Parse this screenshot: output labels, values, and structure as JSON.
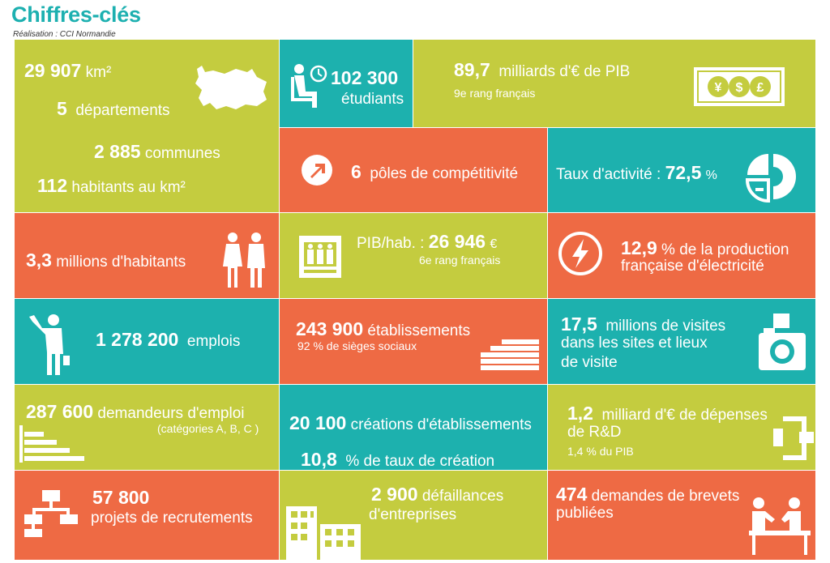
{
  "header": {
    "title": "Chiffres-clés",
    "subtitle": "Réalisation : CCI Normandie"
  },
  "tiles": {
    "territory": {
      "area_num": "29 907",
      "area_unit": "km²",
      "dept_num": "5",
      "dept_label": "départements",
      "communes_num": "2 885",
      "communes_label": "communes",
      "density_num": "112",
      "density_label": "habitants au km²"
    },
    "students": {
      "num": "102 300",
      "label": "étudiants"
    },
    "gdp": {
      "num": "89,7",
      "label": "milliards d'€ de PIB",
      "rank": "9e rang français"
    },
    "poles": {
      "num": "6",
      "label": "pôles de compétitivité"
    },
    "activity": {
      "label": "Taux d'activité :",
      "num": "72,5",
      "unit": "%"
    },
    "population": {
      "num": "3,3",
      "label": "millions d'habitants"
    },
    "gdp_per_capita": {
      "label": "PIB/hab. :",
      "num": "26 946",
      "unit": "€",
      "rank": "6e rang français"
    },
    "electricity": {
      "num": "12,9",
      "line1": "% de la production",
      "line2": "française d'électricité"
    },
    "jobs": {
      "num": "1 278 200",
      "label": "emplois"
    },
    "establishments": {
      "num": "243 900",
      "label": "établissements",
      "sub": "92 % de sièges sociaux"
    },
    "visits": {
      "num": "17,5",
      "line1": "millions de visites",
      "line2": "dans les sites et lieux",
      "line3": "de visite"
    },
    "job_seekers": {
      "num": "287 600",
      "label": "demandeurs d'emploi",
      "sub": "(catégories A, B, C )"
    },
    "creations": {
      "num1": "20 100",
      "label1": "créations d'établissements",
      "num2": "10,8",
      "label2": "% de taux de création"
    },
    "rd": {
      "num": "1,2",
      "line1": "milliard d'€ de dépenses",
      "line2": "de R&D",
      "sub": "1,4 % du PIB"
    },
    "recruitment": {
      "num": "57 800",
      "label": "projets de recrutements"
    },
    "failures": {
      "num": "2 900",
      "line1": "défaillances",
      "line2": "d'entreprises"
    },
    "patents": {
      "num": "474",
      "line1": "demandes de brevets",
      "line2": "publiées"
    }
  },
  "colors": {
    "green": "#c4cc3f",
    "teal": "#1db1ae",
    "orange": "#ee6a44",
    "title": "#1db0b0"
  }
}
